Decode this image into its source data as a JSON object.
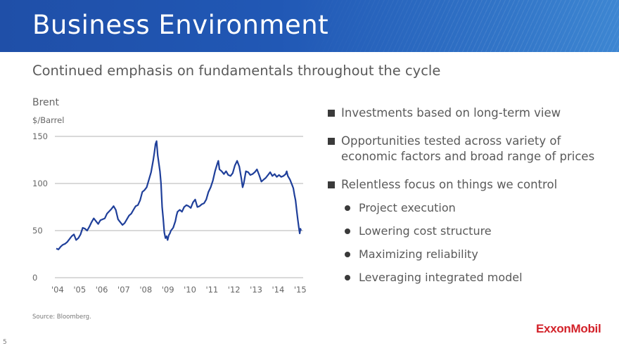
{
  "header": {
    "title": "Business Environment"
  },
  "subtitle": "Continued emphasis on fundamentals throughout the cycle",
  "chart_data": {
    "type": "line",
    "title": "Brent",
    "ylabel": "$/Barrel",
    "xlabel": "",
    "ylim": [
      0,
      150
    ],
    "xlim": [
      2004,
      2015.1
    ],
    "yticks": [
      0,
      50,
      100,
      150
    ],
    "xtick_labels": [
      "'04",
      "'05",
      "'06",
      "'07",
      "'08",
      "'09",
      "'10",
      "'11",
      "'12",
      "'13",
      "'14",
      "'15"
    ],
    "series": [
      {
        "name": "Brent",
        "color": "#1f3f9a",
        "points": [
          [
            2004.0,
            31
          ],
          [
            2004.1,
            30
          ],
          [
            2004.2,
            33
          ],
          [
            2004.3,
            35
          ],
          [
            2004.4,
            36
          ],
          [
            2004.5,
            38
          ],
          [
            2004.6,
            41
          ],
          [
            2004.7,
            44
          ],
          [
            2004.8,
            46
          ],
          [
            2004.9,
            40
          ],
          [
            2005.0,
            42
          ],
          [
            2005.1,
            46
          ],
          [
            2005.2,
            53
          ],
          [
            2005.3,
            52
          ],
          [
            2005.4,
            50
          ],
          [
            2005.5,
            54
          ],
          [
            2005.6,
            59
          ],
          [
            2005.7,
            63
          ],
          [
            2005.8,
            60
          ],
          [
            2005.9,
            57
          ],
          [
            2006.0,
            61
          ],
          [
            2006.2,
            63
          ],
          [
            2006.3,
            68
          ],
          [
            2006.5,
            73
          ],
          [
            2006.6,
            76
          ],
          [
            2006.7,
            72
          ],
          [
            2006.8,
            62
          ],
          [
            2006.9,
            59
          ],
          [
            2007.0,
            56
          ],
          [
            2007.1,
            58
          ],
          [
            2007.3,
            66
          ],
          [
            2007.4,
            68
          ],
          [
            2007.5,
            72
          ],
          [
            2007.6,
            76
          ],
          [
            2007.7,
            77
          ],
          [
            2007.8,
            82
          ],
          [
            2007.9,
            91
          ],
          [
            2008.0,
            93
          ],
          [
            2008.1,
            96
          ],
          [
            2008.2,
            104
          ],
          [
            2008.3,
            112
          ],
          [
            2008.4,
            125
          ],
          [
            2008.45,
            133
          ],
          [
            2008.5,
            142
          ],
          [
            2008.55,
            145
          ],
          [
            2008.6,
            130
          ],
          [
            2008.7,
            113
          ],
          [
            2008.75,
            100
          ],
          [
            2008.8,
            75
          ],
          [
            2008.85,
            62
          ],
          [
            2008.9,
            48
          ],
          [
            2008.95,
            42
          ],
          [
            2009.0,
            44
          ],
          [
            2009.05,
            40
          ],
          [
            2009.1,
            45
          ],
          [
            2009.15,
            47
          ],
          [
            2009.2,
            50
          ],
          [
            2009.3,
            53
          ],
          [
            2009.4,
            60
          ],
          [
            2009.45,
            66
          ],
          [
            2009.5,
            70
          ],
          [
            2009.6,
            72
          ],
          [
            2009.7,
            70
          ],
          [
            2009.8,
            75
          ],
          [
            2009.9,
            77
          ],
          [
            2010.0,
            76
          ],
          [
            2010.1,
            74
          ],
          [
            2010.2,
            80
          ],
          [
            2010.3,
            83
          ],
          [
            2010.4,
            75
          ],
          [
            2010.5,
            76
          ],
          [
            2010.6,
            78
          ],
          [
            2010.7,
            79
          ],
          [
            2010.8,
            83
          ],
          [
            2010.9,
            91
          ],
          [
            2011.0,
            96
          ],
          [
            2011.1,
            103
          ],
          [
            2011.2,
            113
          ],
          [
            2011.3,
            121
          ],
          [
            2011.35,
            124
          ],
          [
            2011.4,
            115
          ],
          [
            2011.5,
            113
          ],
          [
            2011.6,
            110
          ],
          [
            2011.7,
            113
          ],
          [
            2011.8,
            109
          ],
          [
            2011.9,
            108
          ],
          [
            2012.0,
            111
          ],
          [
            2012.1,
            119
          ],
          [
            2012.2,
            124
          ],
          [
            2012.3,
            118
          ],
          [
            2012.4,
            104
          ],
          [
            2012.45,
            96
          ],
          [
            2012.5,
            100
          ],
          [
            2012.6,
            113
          ],
          [
            2012.7,
            112
          ],
          [
            2012.8,
            109
          ],
          [
            2012.9,
            110
          ],
          [
            2013.0,
            112
          ],
          [
            2013.1,
            115
          ],
          [
            2013.2,
            109
          ],
          [
            2013.3,
            102
          ],
          [
            2013.4,
            104
          ],
          [
            2013.5,
            106
          ],
          [
            2013.6,
            109
          ],
          [
            2013.7,
            112
          ],
          [
            2013.8,
            108
          ],
          [
            2013.9,
            110
          ],
          [
            2014.0,
            107
          ],
          [
            2014.1,
            109
          ],
          [
            2014.2,
            107
          ],
          [
            2014.3,
            108
          ],
          [
            2014.4,
            110
          ],
          [
            2014.45,
            113
          ],
          [
            2014.5,
            108
          ],
          [
            2014.6,
            104
          ],
          [
            2014.7,
            98
          ],
          [
            2014.75,
            95
          ],
          [
            2014.8,
            88
          ],
          [
            2014.85,
            82
          ],
          [
            2014.9,
            72
          ],
          [
            2014.95,
            62
          ],
          [
            2015.0,
            53
          ],
          [
            2015.04,
            47
          ],
          [
            2015.07,
            52
          ],
          [
            2015.1,
            50
          ]
        ]
      }
    ]
  },
  "source": "Source: Bloomberg.",
  "page_number": "5",
  "bullets": [
    {
      "level": 1,
      "text": "Investments based on long-term view"
    },
    {
      "level": 1,
      "text": "Opportunities tested across variety of economic factors and broad range of prices"
    },
    {
      "level": 1,
      "text": "Relentless focus on things we control"
    },
    {
      "level": 2,
      "text": "Project execution"
    },
    {
      "level": 2,
      "text": "Lowering cost structure"
    },
    {
      "level": 2,
      "text": "Maximizing reliability"
    },
    {
      "level": 2,
      "text": "Leveraging integrated model"
    }
  ],
  "logo": {
    "text": "ExxonMobil",
    "color": "#d3222a"
  }
}
